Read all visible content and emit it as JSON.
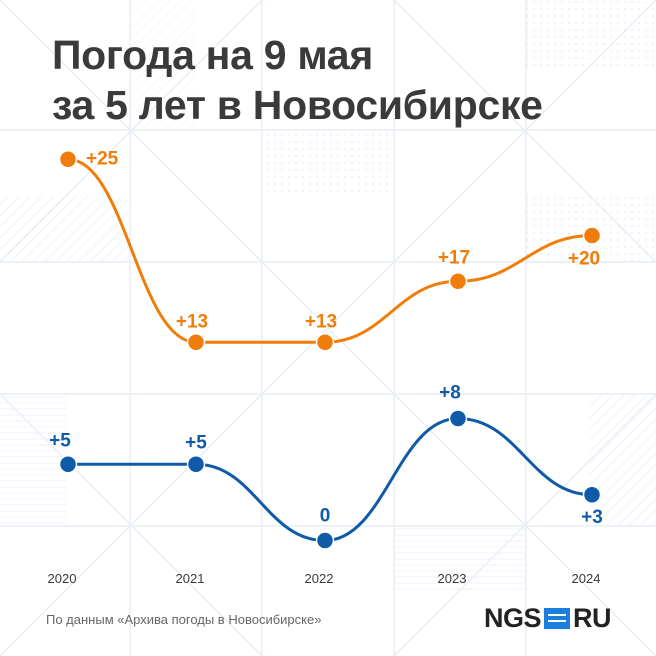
{
  "title_line1": "Погода на 9 мая",
  "title_line2": "за 5 лет в Новосибирске",
  "source": "По данным «Архива погоды в Новосибирске»",
  "logo": {
    "left": "NGS",
    "right": "RU"
  },
  "colors": {
    "orange": "#f07d0a",
    "blue": "#0f5ba8",
    "title": "#3a3a3a",
    "logo_accent": "#1c7fe0"
  },
  "chart_data": {
    "type": "line",
    "title": "Погода на 9 мая за 5 лет в Новосибирске",
    "x": [
      "2020",
      "2021",
      "2022",
      "2023",
      "2024"
    ],
    "legend": "none",
    "grid": false,
    "series": [
      {
        "values": [
          25,
          13,
          13,
          17,
          20
        ],
        "labels": [
          "+25",
          "+13",
          "+13",
          "+17",
          "+20"
        ],
        "color": "#f07d0a"
      },
      {
        "values": [
          5,
          5,
          0,
          8,
          3
        ],
        "labels": [
          "+5",
          "+5",
          "0",
          "+8",
          "+3"
        ],
        "color": "#0f5ba8"
      }
    ]
  }
}
